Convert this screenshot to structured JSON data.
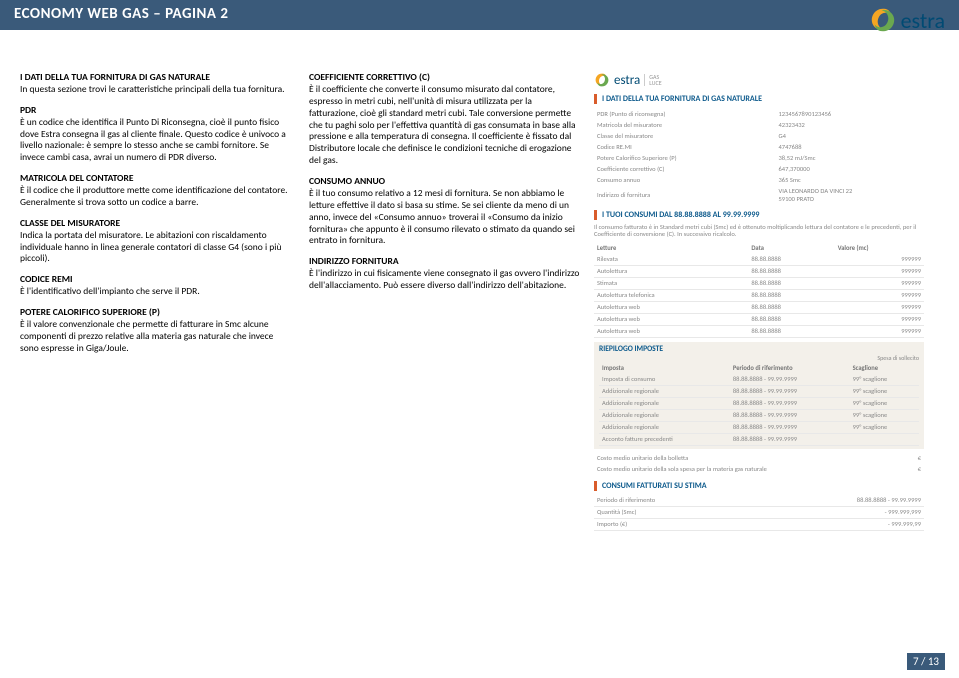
{
  "titlebar": "ECONOMY WEB GAS – PAGINA 2",
  "brand": "estra",
  "col_a": {
    "h1": "I DATI DELLA TUA FORNITURA DI GAS NATURALE",
    "p1": "In questa sezione trovi le caratteristiche principali della tua fornitura.",
    "h2": "PDR",
    "p2": "È un codice che identifica il Punto Di Riconsegna, cioè il punto fisico dove Estra consegna il gas al cliente finale. Questo codice è univoco a livello nazionale: è sempre lo stesso anche se cambi fornitore. Se invece cambi casa, avrai un numero di PDR diverso.",
    "h3": "MATRICOLA DEL CONTATORE",
    "p3": "È il codice che il produttore mette come identificazione del contatore. Generalmente si trova sotto un codice a barre.",
    "h4": "CLASSE DEL MISURATORE",
    "p4": "Indica la portata del misuratore. Le abitazioni con riscaldamento individuale hanno in linea generale contatori di classe G4 (sono i più piccoli).",
    "h5": "CODICE REMI",
    "p5": "È l'identificativo dell'impianto che serve il PDR.",
    "h6": "POTERE CALORIFICO SUPERIORE (P)",
    "p6": "È il valore convenzionale che permette di fatturare in Smc alcune componenti di prezzo relative alla materia gas naturale che invece sono espresse in Giga/Joule."
  },
  "col_b": {
    "h1": "COEFFICIENTE CORRETTIVO (C)",
    "p1": "È il coefficiente che converte il consumo misurato dal contatore, espresso in metri cubi, nell'unità di misura utilizzata per la fatturazione, cioè gli standard metri cubi. Tale conversione permette che tu paghi solo per l'effettiva quantità di gas consumata in base alla pressione e alla temperatura di consegna. Il coefficiente è fissato dal Distributore locale che definisce le condizioni tecniche di erogazione del gas.",
    "h2": "CONSUMO ANNUO",
    "p2": "È il tuo consumo relativo a 12 mesi di fornitura. Se non abbiamo le letture effettive il dato si basa su stime. Se sei cliente da meno di un anno, invece del «Consumo annuo» troverai il «Consumo da inizio fornitura» che appunto è il consumo rilevato o stimato da quando sei entrato in fornitura.",
    "h3": "INDIRIZZO FORNITURA",
    "p3": "È l'indirizzo in cui fisicamente viene consegnato il gas ovvero l'indirizzo dell'allacciamento. Può essere diverso dall'indirizzo dell'abitazione."
  },
  "facs": {
    "brand": "estra",
    "sub1": "GAS",
    "sub2": "LUCE",
    "h1": "I DATI DELLA TUA FORNITURA DI GAS NATURALE",
    "kv": [
      [
        "PDR (Punto di riconsegna)",
        "1234567890123456"
      ],
      [
        "Matricola del misuratore",
        "42323432"
      ],
      [
        "Classe del misuratore",
        "G4"
      ],
      [
        "Codice RE.MI",
        "4747688"
      ],
      [
        "Potere Calorifico Superiore (P)",
        "38,52 mJ/Smc"
      ],
      [
        "Coefficiente correttivo (C)",
        "647,370000"
      ],
      [
        "Consumo annuo",
        "365 Smc"
      ],
      [
        "Indirizzo di fornitura",
        "VIA LEONARDO DA VINCI 22\n59100 PRATO"
      ]
    ],
    "h2": "I TUOI CONSUMI DAL 88.88.8888 AL 99.99.9999",
    "note1": "Il consumo fatturato è in Standard metri cubi (Smc) ed è ottenuto moltiplicando lettura del contatore e le precedenti, per il Coefficiente di conversione (C). In successivo ricalcolo.",
    "letture_cols": [
      "Letture",
      "Data",
      "Valore (mc)"
    ],
    "letture_rows": [
      [
        "Rilevata",
        "88.88.8888",
        "999999"
      ],
      [
        "Autolettura",
        "88.88.8888",
        "999999"
      ],
      [
        "Stimata",
        "88.88.8888",
        "999999"
      ],
      [
        "Autolettura telefonica",
        "88.88.8888",
        "999999"
      ],
      [
        "Autolettura web",
        "88.88.8888",
        "999999"
      ],
      [
        "Autolettura web",
        "88.88.8888",
        "999999"
      ],
      [
        "Autolettura web",
        "88.88.8888",
        "999999"
      ]
    ],
    "h3": "RIEPILOGO IMPOSTE",
    "riep_sub": "Spesa di sollecito",
    "imp_cols": [
      "Imposta",
      "Periodo di riferimento",
      "Scaglione"
    ],
    "imp_rows": [
      [
        "Imposta di consumo",
        "88.88.8888 - 99.99.9999",
        "99° scaglione"
      ],
      [
        "Addizionale regionale",
        "88.88.8888 - 99.99.9999",
        "99° scaglione"
      ],
      [
        "Addizionale regionale",
        "88.88.8888 - 99.99.9999",
        "99° scaglione"
      ],
      [
        "Addizionale regionale",
        "88.88.8888 - 99.99.9999",
        "99° scaglione"
      ],
      [
        "Addizionale regionale",
        "88.88.8888 - 99.99.9999",
        "99° scaglione"
      ],
      [
        "Acconto fatture precedenti",
        "88.88.8888 - 99.99.9999",
        ""
      ]
    ],
    "costi": [
      [
        "Costo medio unitario della bolletta",
        "€"
      ],
      [
        "Costo medio unitario della sola spesa per la materia gas naturale",
        "€"
      ]
    ],
    "h4": "CONSUMI FATTURATI SU STIMA",
    "stima": [
      [
        "Periodo di riferimento",
        "88.88.8888 - 99.99.9999"
      ],
      [
        "Quantità (Smc)",
        "- 999.999,999"
      ],
      [
        "Importo (€)",
        "- 999.999,99"
      ]
    ]
  },
  "pagenum": "7 / 13"
}
